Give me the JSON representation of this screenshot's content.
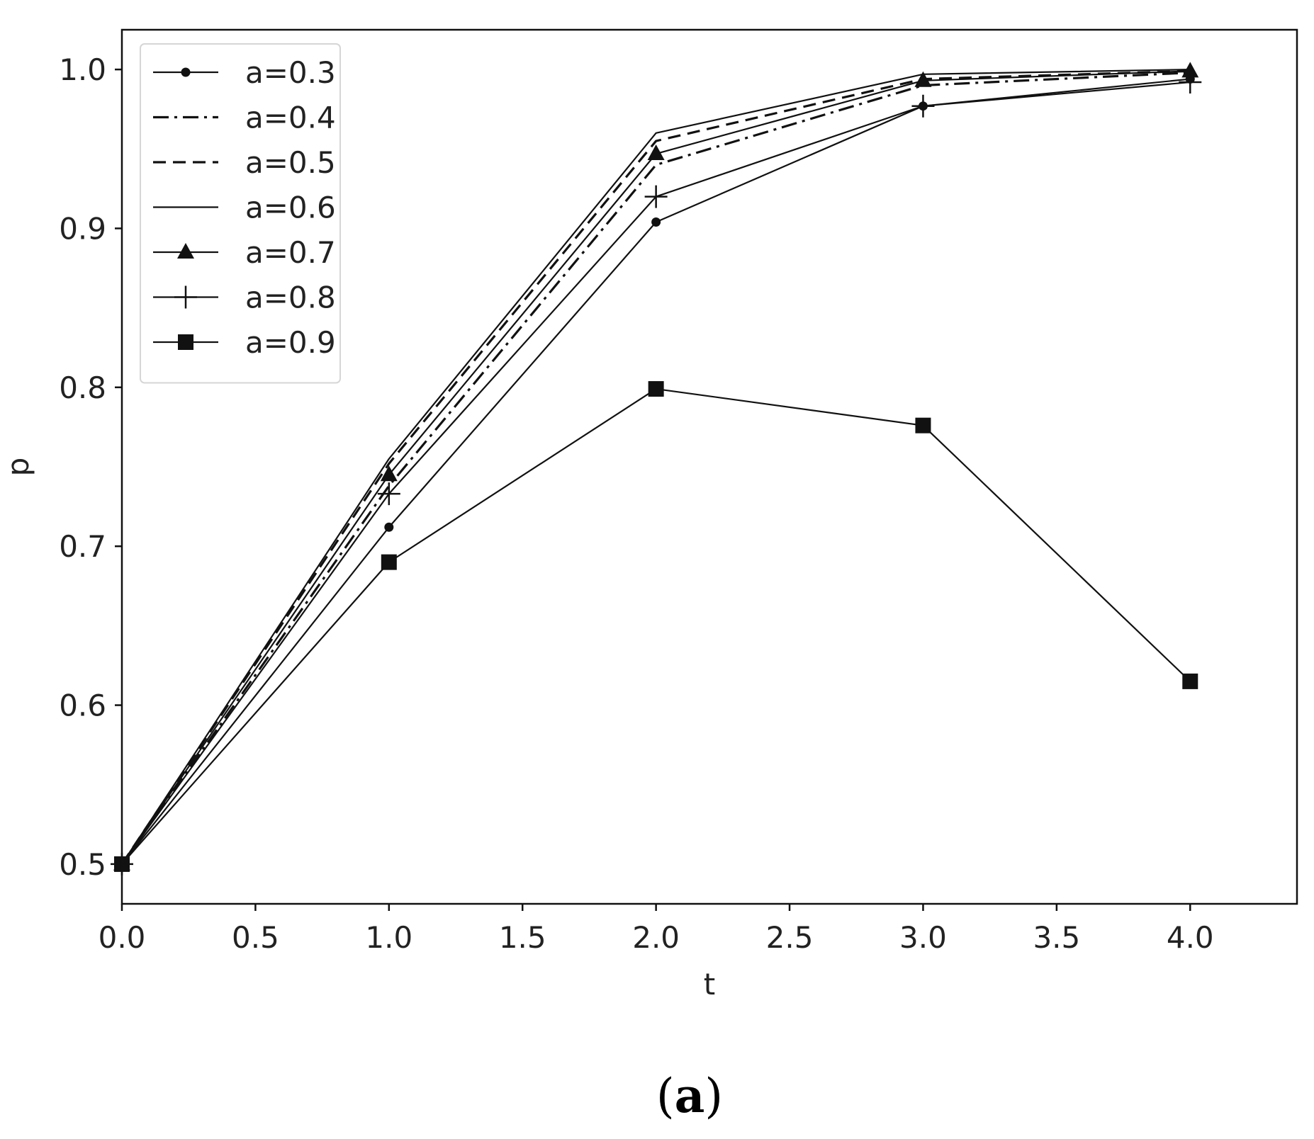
{
  "chart_data": {
    "type": "line",
    "xlabel": "t",
    "ylabel": "p",
    "xlim": [
      0.0,
      4.4
    ],
    "ylim": [
      0.475,
      1.025
    ],
    "xticks": [
      "0.0",
      "0.5",
      "1.0",
      "1.5",
      "2.0",
      "2.5",
      "3.0",
      "3.5",
      "4.0"
    ],
    "yticks": [
      "0.5",
      "0.6",
      "0.7",
      "0.8",
      "0.9",
      "1.0"
    ],
    "x": [
      0,
      1,
      2,
      3,
      4
    ],
    "series": [
      {
        "name": "a=0.3",
        "values": [
          0.5,
          0.712,
          0.904,
          0.977,
          0.994
        ],
        "linestyle": "solid",
        "marker": "circle"
      },
      {
        "name": "a=0.4",
        "values": [
          0.5,
          0.738,
          0.94,
          0.99,
          0.998
        ],
        "linestyle": "dashdot",
        "marker": "none"
      },
      {
        "name": "a=0.5",
        "values": [
          0.5,
          0.752,
          0.955,
          0.994,
          0.999
        ],
        "linestyle": "dashed",
        "marker": "none"
      },
      {
        "name": "a=0.6",
        "values": [
          0.5,
          0.755,
          0.96,
          0.997,
          1.0
        ],
        "linestyle": "solid",
        "marker": "none"
      },
      {
        "name": "a=0.7",
        "values": [
          0.5,
          0.745,
          0.947,
          0.993,
          0.999
        ],
        "linestyle": "solid",
        "marker": "triangle"
      },
      {
        "name": "a=0.8",
        "values": [
          0.5,
          0.733,
          0.92,
          0.977,
          0.992
        ],
        "linestyle": "solid",
        "marker": "plus"
      },
      {
        "name": "a=0.9",
        "values": [
          0.5,
          0.69,
          0.799,
          0.776,
          0.615
        ],
        "linestyle": "solid",
        "marker": "square"
      }
    ],
    "grid": false,
    "legend_position": "upper-left",
    "line_color": "#111111"
  },
  "caption": {
    "open": "(",
    "letter": "a",
    "close": ")"
  }
}
